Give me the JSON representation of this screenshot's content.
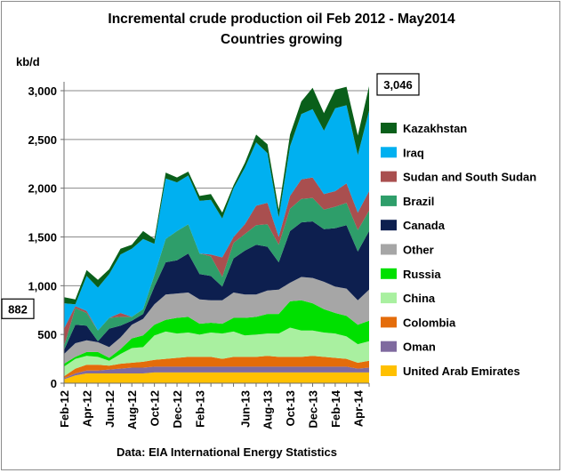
{
  "chart_data": {
    "type": "area",
    "stacked": true,
    "title": "Incremental crude production oil Feb 2012 - May2014",
    "subtitle": "Countries growing",
    "ylabel": "kb/d",
    "ylim": [
      0,
      3000
    ],
    "yticks": [
      0,
      500,
      1000,
      1500,
      2000,
      2500,
      3000
    ],
    "ytick_labels": [
      "0",
      "500",
      "1,000",
      "1,500",
      "2,000",
      "2,500",
      "3,000"
    ],
    "xtick_labels": [
      "Feb-12",
      "Apr-12",
      "Jun-12",
      "Aug-12",
      "Oct-12",
      "Dec-12",
      "Feb-13",
      "Jun-13",
      "Aug-13",
      "Oct-13",
      "Dec-13",
      "Feb-14",
      "Apr-14"
    ],
    "xtick_months": [
      0,
      2,
      4,
      6,
      8,
      10,
      12,
      16,
      18,
      20,
      22,
      24,
      26
    ],
    "x_months": [
      "Feb-12",
      "Mar-12",
      "Apr-12",
      "May-12",
      "Jun-12",
      "Jul-12",
      "Aug-12",
      "Sep-12",
      "Oct-12",
      "Nov-12",
      "Dec-12",
      "Jan-13",
      "Feb-13",
      "Mar-13",
      "Apr-13",
      "May-13",
      "Jun-13",
      "Jul-13",
      "Aug-13",
      "Sep-13",
      "Oct-13",
      "Nov-13",
      "Dec-13",
      "Jan-14",
      "Feb-14",
      "Mar-14",
      "Apr-14",
      "May-14"
    ],
    "grid": true,
    "legend_position": "right",
    "source": "Data: EIA International Energy Statistics",
    "annotations": [
      {
        "text": "882",
        "month": 0,
        "value": 882
      },
      {
        "text": "3,046",
        "month": 27,
        "value": 3046
      }
    ],
    "series": [
      {
        "name": "United Arab Emirates",
        "color": "#FFC000",
        "values": [
          40,
          80,
          100,
          100,
          100,
          100,
          100,
          100,
          110,
          110,
          110,
          110,
          110,
          110,
          110,
          110,
          110,
          110,
          110,
          110,
          110,
          110,
          110,
          110,
          110,
          110,
          110,
          110
        ]
      },
      {
        "name": "Oman",
        "color": "#7F6A9F",
        "values": [
          10,
          20,
          30,
          30,
          40,
          50,
          60,
          60,
          60,
          60,
          60,
          60,
          60,
          60,
          60,
          60,
          60,
          60,
          60,
          60,
          60,
          60,
          60,
          60,
          60,
          60,
          40,
          50
        ]
      },
      {
        "name": "Colombia",
        "color": "#E46C0A",
        "values": [
          20,
          50,
          60,
          60,
          40,
          50,
          50,
          60,
          70,
          80,
          90,
          100,
          100,
          100,
          80,
          100,
          100,
          100,
          110,
          100,
          100,
          100,
          110,
          100,
          90,
          80,
          60,
          70
        ]
      },
      {
        "name": "China",
        "color": "#A9F0A0",
        "values": [
          100,
          100,
          90,
          80,
          50,
          100,
          150,
          150,
          250,
          280,
          250,
          250,
          230,
          250,
          260,
          260,
          220,
          230,
          230,
          240,
          300,
          270,
          260,
          250,
          250,
          230,
          190,
          200
        ]
      },
      {
        "name": "Russia",
        "color": "#00E000",
        "values": [
          30,
          20,
          40,
          50,
          30,
          50,
          100,
          120,
          110,
          120,
          160,
          160,
          110,
          100,
          100,
          140,
          180,
          180,
          200,
          200,
          270,
          310,
          280,
          240,
          210,
          210,
          200,
          210
        ]
      },
      {
        "name": "Other",
        "color": "#A6A6A6",
        "values": [
          100,
          140,
          120,
          100,
          110,
          120,
          140,
          170,
          210,
          260,
          250,
          250,
          250,
          230,
          240,
          260,
          240,
          230,
          240,
          250,
          190,
          240,
          260,
          280,
          270,
          280,
          250,
          320
        ]
      },
      {
        "name": "Canada",
        "color": "#0D1F4F",
        "values": [
          40,
          190,
          150,
          10,
          190,
          120,
          40,
          50,
          180,
          330,
          340,
          400,
          260,
          250,
          140,
          350,
          450,
          510,
          450,
          280,
          530,
          560,
          580,
          540,
          600,
          650,
          500,
          600
        ]
      },
      {
        "name": "Brazil",
        "color": "#2E9E6A",
        "values": [
          40,
          170,
          130,
          110,
          110,
          90,
          40,
          50,
          120,
          240,
          300,
          300,
          210,
          200,
          100,
          160,
          170,
          200,
          230,
          180,
          230,
          240,
          240,
          200,
          220,
          230,
          220,
          210
        ]
      },
      {
        "name": "Sudan and South Sudan",
        "color": "#A94F4F",
        "values": [
          180,
          20,
          20,
          0,
          0,
          40,
          0,
          0,
          0,
          0,
          0,
          0,
          0,
          20,
          200,
          60,
          100,
          200,
          220,
          80,
          130,
          200,
          210,
          160,
          160,
          200,
          180,
          200
        ]
      },
      {
        "name": "Iraq",
        "color": "#00B0F0",
        "values": [
          260,
          20,
          360,
          440,
          450,
          600,
          700,
          720,
          320,
          620,
          500,
          500,
          540,
          560,
          400,
          500,
          580,
          650,
          510,
          200,
          510,
          670,
          700,
          650,
          850,
          800,
          590,
          826
        ]
      },
      {
        "name": "Kazakhstan",
        "color": "#0A5F1A",
        "values": [
          62,
          50,
          60,
          80,
          50,
          60,
          40,
          80,
          50,
          60,
          50,
          40,
          50,
          60,
          60,
          30,
          50,
          80,
          90,
          80,
          120,
          130,
          220,
          180,
          190,
          190,
          200,
          250
        ]
      }
    ]
  }
}
